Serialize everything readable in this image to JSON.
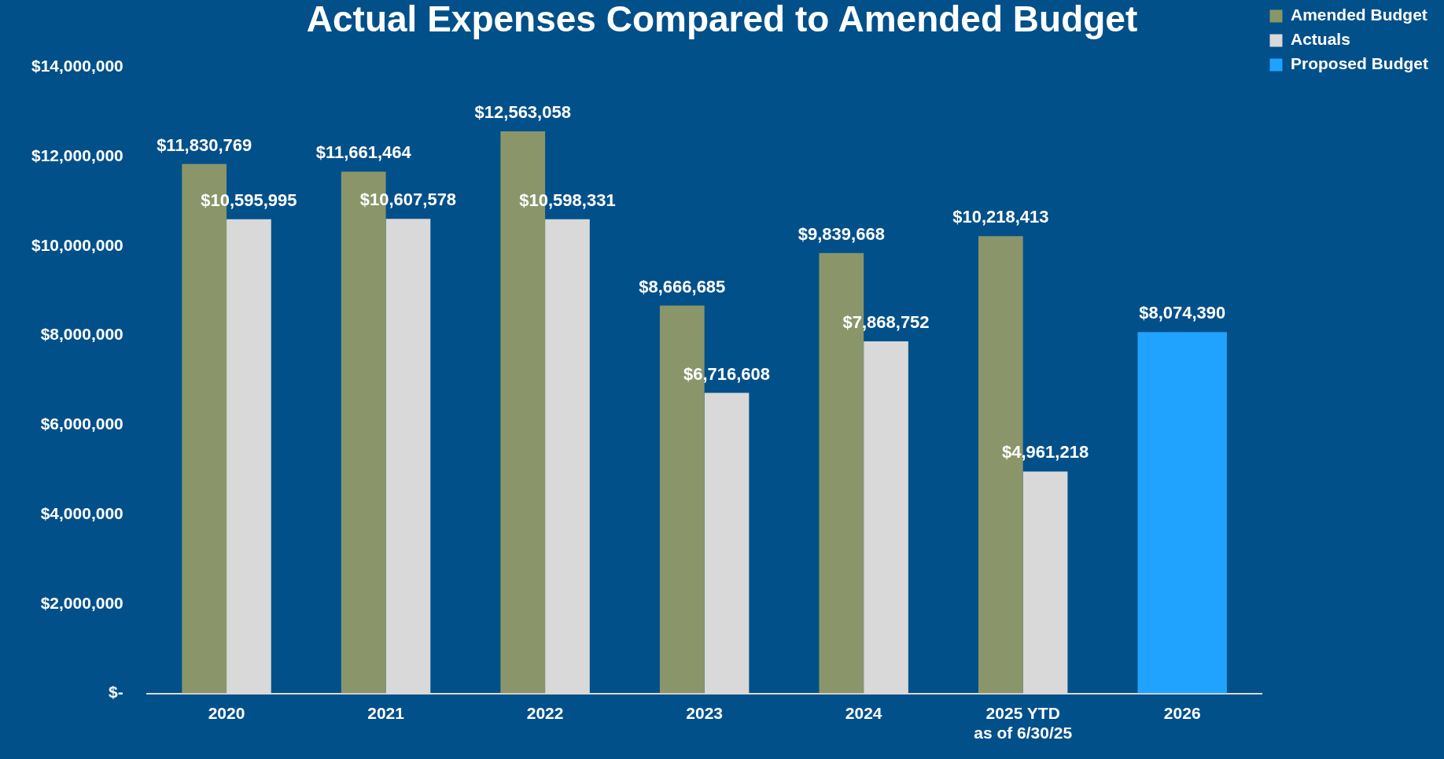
{
  "chart_data": {
    "type": "bar",
    "title": "Actual Expenses Compared to Amended Budget",
    "categories": [
      "2020",
      "2021",
      "2022",
      "2023",
      "2024",
      "2025 YTD\nas of 6/30/25",
      "2026"
    ],
    "series": [
      {
        "name": "Amended Budget",
        "color": "#8a9669",
        "values": [
          11830769,
          11661464,
          12563058,
          8666685,
          9839668,
          10218413,
          null
        ],
        "value_labels": [
          "$11,830,769",
          "$11,661,464",
          "$12,563,058",
          "$8,666,685",
          "$9,839,668",
          "$10,218,413",
          null
        ]
      },
      {
        "name": "Actuals",
        "color": "#d9d9d9",
        "values": [
          10595995,
          10607578,
          10598331,
          6716608,
          7868752,
          4961218,
          null
        ],
        "value_labels": [
          "$10,595,995",
          "$10,607,578",
          "$10,598,331",
          "$6,716,608",
          "$7,868,752",
          "$4,961,218",
          null
        ]
      },
      {
        "name": "Proposed Budget",
        "color": "#1fa3ff",
        "values": [
          null,
          null,
          null,
          null,
          null,
          null,
          8074390
        ],
        "value_labels": [
          null,
          null,
          null,
          null,
          null,
          null,
          "$8,074,390"
        ]
      }
    ],
    "ylim": [
      0,
      14000000
    ],
    "yticks": [
      {
        "value": 0,
        "label": "$-"
      },
      {
        "value": 2000000,
        "label": "$2,000,000"
      },
      {
        "value": 4000000,
        "label": "$4,000,000"
      },
      {
        "value": 6000000,
        "label": "$6,000,000"
      },
      {
        "value": 8000000,
        "label": "$8,000,000"
      },
      {
        "value": 10000000,
        "label": "$10,000,000"
      },
      {
        "value": 12000000,
        "label": "$12,000,000"
      },
      {
        "value": 14000000,
        "label": "$14,000,000"
      }
    ],
    "grid": false,
    "legend": "top right"
  }
}
